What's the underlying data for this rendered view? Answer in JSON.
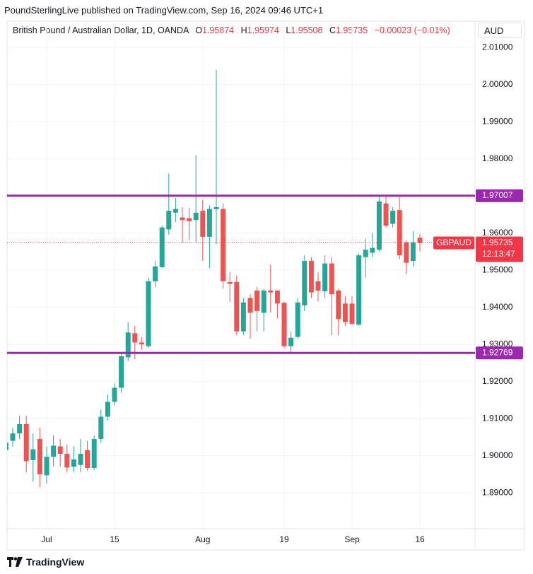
{
  "header": "PoundSterlingLive published on TradingView.com, Sep 16, 2024 09:46 UTC+1",
  "legend": {
    "symbol": "British Pound / Australian Dollar, 1D, OANDA",
    "o": "O",
    "h": "H",
    "l": "L",
    "c": "C",
    "change": "−0.00023 (−0.01%)"
  },
  "currency": "AUD",
  "footer": "TradingView",
  "chart_data": {
    "type": "candlestick",
    "categories": [
      null,
      null,
      null,
      null,
      null,
      null,
      "Jul",
      null,
      null,
      null,
      null,
      null,
      null,
      null,
      null,
      null,
      "15",
      null,
      null,
      null,
      null,
      null,
      null,
      null,
      null,
      null,
      null,
      null,
      null,
      "Aug",
      null,
      null,
      null,
      null,
      null,
      null,
      null,
      null,
      null,
      null,
      null,
      "19",
      null,
      null,
      null,
      null,
      null,
      null,
      null,
      null,
      null,
      "Sep",
      null,
      null,
      null,
      null,
      null,
      null,
      null,
      null,
      null,
      "16"
    ],
    "open": [
      1.9015,
      1.904,
      1.906,
      1.9085,
      1.8988,
      1.9045,
      1.8947,
      1.8997,
      1.9025,
      1.9005,
      1.897,
      1.8975,
      1.9015,
      1.8967,
      1.9045,
      1.9105,
      1.9145,
      1.9183,
      1.9265,
      1.933,
      1.9305,
      1.9295,
      1.947,
      1.9508,
      1.961,
      1.9655,
      1.9642,
      1.964,
      1.9635,
      1.966,
      1.959,
      1.9664,
      1.9665,
      1.9468,
      1.9468,
      1.9335,
      1.9425,
      1.9445,
      1.9385,
      1.9445,
      1.9445,
      1.9412,
      1.9295,
      1.932,
      1.9405,
      1.9525,
      1.947,
      1.9443,
      1.9518,
      1.9445,
      1.941,
      1.941,
      1.9353,
      1.9535,
      1.9547,
      1.9555,
      1.968,
      1.9625,
      1.9662,
      1.9575,
      1.9525,
      1.95874
    ],
    "high": [
      1.905,
      1.9075,
      1.9108,
      1.9108,
      1.906,
      1.9075,
      1.9025,
      1.9055,
      1.9045,
      1.903,
      1.9025,
      1.9045,
      1.904,
      1.9055,
      1.9125,
      1.9165,
      1.9195,
      1.9275,
      1.936,
      1.935,
      1.932,
      1.948,
      1.9525,
      1.962,
      1.976,
      1.9695,
      1.967,
      1.9668,
      1.981,
      1.969,
      1.9675,
      2.004,
      1.968,
      1.9495,
      1.9485,
      1.9425,
      1.9435,
      1.9455,
      1.945,
      1.9515,
      1.9445,
      1.9415,
      1.9335,
      1.9425,
      1.954,
      1.9535,
      1.9495,
      1.954,
      1.9535,
      1.945,
      1.943,
      1.943,
      1.9545,
      1.9585,
      1.96,
      1.97,
      1.97,
      1.967,
      1.97,
      1.958,
      1.9605,
      1.95974
    ],
    "low": [
      1.9,
      1.9025,
      1.9045,
      1.8955,
      1.893,
      1.8915,
      1.8925,
      1.897,
      1.897,
      1.8955,
      1.8955,
      1.8955,
      1.896,
      1.896,
      1.9035,
      1.9095,
      1.9135,
      1.917,
      1.9255,
      1.926,
      1.9285,
      1.929,
      1.9455,
      1.9505,
      1.9595,
      1.963,
      1.9575,
      1.958,
      1.9575,
      1.9525,
      1.9505,
      1.957,
      1.945,
      1.9415,
      1.9325,
      1.9325,
      1.9315,
      1.9335,
      1.9335,
      1.9385,
      1.937,
      1.929,
      1.9275,
      1.9315,
      1.939,
      1.9425,
      1.9415,
      1.9425,
      1.9325,
      1.9325,
      1.935,
      1.9355,
      1.935,
      1.948,
      1.9535,
      1.955,
      1.9615,
      1.9615,
      1.953,
      1.949,
      1.951,
      1.95508
    ],
    "close": [
      1.9035,
      1.906,
      1.9085,
      1.8985,
      1.9017,
      1.895,
      1.8997,
      1.9027,
      1.9005,
      1.8968,
      1.899,
      1.9005,
      1.8967,
      1.9045,
      1.9105,
      1.9145,
      1.9183,
      1.9268,
      1.9332,
      1.9305,
      1.93,
      1.947,
      1.951,
      1.9615,
      1.966,
      1.9665,
      1.9635,
      1.9632,
      1.9655,
      1.959,
      1.9665,
      1.967,
      1.947,
      1.9463,
      1.9335,
      1.9413,
      1.9385,
      1.939,
      1.9445,
      1.944,
      1.941,
      1.9295,
      1.9318,
      1.9413,
      1.9525,
      1.944,
      1.9445,
      1.9518,
      1.9435,
      1.9368,
      1.936,
      1.9355,
      1.954,
      1.9555,
      1.956,
      1.9685,
      1.962,
      1.966,
      1.954,
      1.952,
      1.9575,
      1.95735
    ],
    "up_color": "#26a69a",
    "down_color": "#ef5350",
    "ylim": [
      1.8803,
      2.0171
    ],
    "yticks": [
      {
        "value": 1.89,
        "label": "1.89000"
      },
      {
        "value": 1.9,
        "label": "1.90000"
      },
      {
        "value": 1.91,
        "label": "1.91000"
      },
      {
        "value": 1.92,
        "label": "1.92000"
      },
      {
        "value": 1.93,
        "label": "1.93000"
      },
      {
        "value": 1.94,
        "label": "1.94000"
      },
      {
        "value": 1.95,
        "label": "1.95000"
      },
      {
        "value": 1.96,
        "label": "1.96000"
      },
      {
        "value": 1.97,
        "label": "1.97000"
      },
      {
        "value": 1.98,
        "label": "1.98000"
      },
      {
        "value": 1.99,
        "label": "1.99000"
      },
      {
        "value": 2.0,
        "label": "2.00000"
      },
      {
        "value": 2.01,
        "label": "2.01000"
      }
    ],
    "grid": true,
    "horizontal_lines": [
      {
        "value": 1.97007,
        "color": "#9c27b0"
      },
      {
        "value": 1.92769,
        "color": "#9c27b0"
      }
    ],
    "last_price": {
      "symbol": "GBPAUD",
      "countdown": "12:13:47",
      "color": "#f23645"
    }
  }
}
